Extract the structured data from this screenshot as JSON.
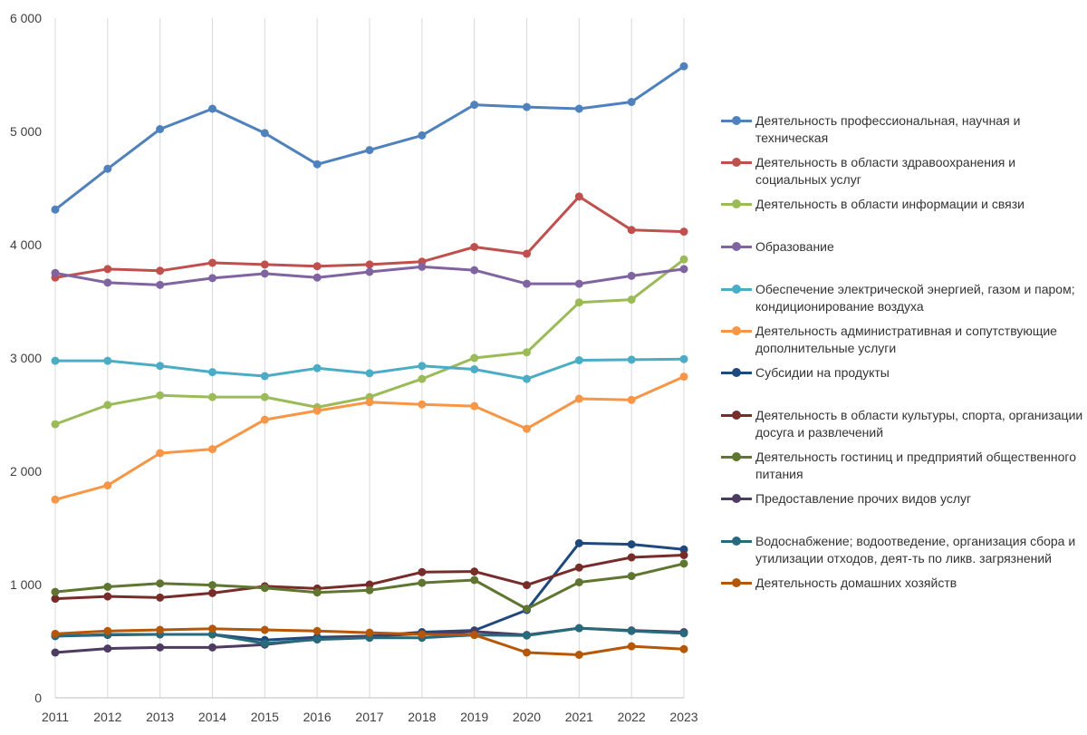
{
  "chart_data": {
    "type": "line",
    "title": "",
    "xlabel": "",
    "ylabel": "",
    "x": [
      2011,
      2012,
      2013,
      2014,
      2015,
      2016,
      2017,
      2018,
      2019,
      2020,
      2021,
      2022,
      2023
    ],
    "ylim": [
      0,
      6000
    ],
    "yticks": [
      0,
      1000,
      2000,
      3000,
      4000,
      5000,
      6000
    ],
    "ytick_labels": [
      "0",
      "1 000",
      "2 000",
      "3 000",
      "4 000",
      "5 000",
      "6 000"
    ],
    "xtick_labels": [
      "2011",
      "2012",
      "2013",
      "2014",
      "2015",
      "2016",
      "2017",
      "2018",
      "2019",
      "2020",
      "2021",
      "2022",
      "2023"
    ],
    "grid": "vertical",
    "legend_position": "right",
    "series": [
      {
        "name": "Деятельность профессиональная, научная и техническая",
        "color": "#4F81BD",
        "values": [
          4310,
          4670,
          5020,
          5200,
          4985,
          4710,
          4835,
          4965,
          5235,
          5215,
          5200,
          5260,
          5575
        ]
      },
      {
        "name": "Деятельность в области здравоохранения и социальных услуг",
        "color": "#C0504D",
        "values": [
          3710,
          3785,
          3770,
          3840,
          3825,
          3810,
          3825,
          3850,
          3980,
          3920,
          4425,
          4130,
          4115
        ]
      },
      {
        "name": "Деятельность в области информации и связи",
        "color": "#9BBB59",
        "values": [
          2415,
          2585,
          2670,
          2655,
          2655,
          2565,
          2655,
          2815,
          3000,
          3050,
          3490,
          3515,
          3870
        ]
      },
      {
        "name": "Образование",
        "color": "#8064A2",
        "values": [
          3750,
          3665,
          3645,
          3705,
          3745,
          3710,
          3760,
          3805,
          3775,
          3655,
          3655,
          3725,
          3785
        ]
      },
      {
        "name": "Обеспечение электрической энергией, газом и паром; кондиционирование воздуха",
        "color": "#4BACC6",
        "values": [
          2975,
          2975,
          2930,
          2875,
          2840,
          2910,
          2865,
          2930,
          2900,
          2815,
          2980,
          2985,
          2990
        ]
      },
      {
        "name": "Деятельность административная и сопутствующие дополнительные услуги",
        "color": "#F79646",
        "values": [
          1750,
          1875,
          2160,
          2195,
          2455,
          2535,
          2610,
          2590,
          2575,
          2375,
          2640,
          2630,
          2835
        ]
      },
      {
        "name": "Субсидии на продукты",
        "color": "#1F497D",
        "values": [
          545,
          555,
          560,
          560,
          510,
          535,
          545,
          580,
          595,
          775,
          1365,
          1355,
          1310
        ]
      },
      {
        "name": "Деятельность в области культуры, спорта, организации досуга и развлечений",
        "color": "#772C2A",
        "values": [
          875,
          895,
          885,
          925,
          985,
          965,
          1000,
          1110,
          1115,
          995,
          1150,
          1240,
          1260
        ]
      },
      {
        "name": "Деятельность гостиниц и предприятий общественного питания",
        "color": "#5F7530",
        "values": [
          935,
          980,
          1010,
          995,
          970,
          930,
          950,
          1015,
          1040,
          785,
          1020,
          1075,
          1185
        ]
      },
      {
        "name": "Предоставление прочих видов услуг",
        "color": "#4D3B62",
        "values": [
          400,
          435,
          445,
          445,
          470,
          520,
          545,
          565,
          585,
          555,
          615,
          595,
          580
        ]
      },
      {
        "name": "Водоснабжение; водоотведение, организация сбора и утилизации отходов, деят-ть по ликв. загрязнений",
        "color": "#276A7C",
        "values": [
          545,
          560,
          560,
          560,
          480,
          515,
          530,
          530,
          555,
          550,
          615,
          590,
          570
        ]
      },
      {
        "name": "Деятельность домашних хозяйств",
        "color": "#B65708",
        "values": [
          565,
          590,
          600,
          610,
          600,
          590,
          575,
          560,
          555,
          400,
          380,
          455,
          430
        ]
      }
    ]
  }
}
